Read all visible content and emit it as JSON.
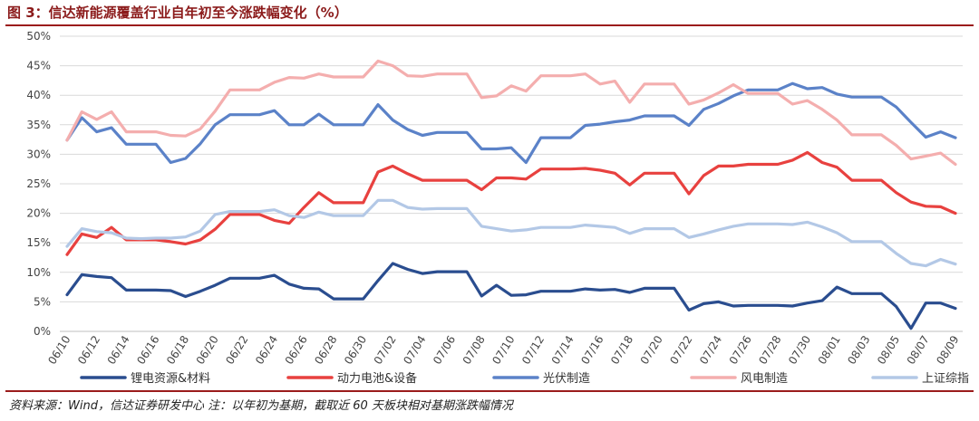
{
  "header": {
    "title": "图 3：信达新能源覆盖行业自年初至今涨跌幅变化（%）"
  },
  "footer": {
    "source": "资料来源：Wind，信达证券研发中心  注：以年初为基期，截取近 60 天板块相对基期涨跌幅情况"
  },
  "chart_data": {
    "type": "line",
    "title": "图 3：信达新能源覆盖行业自年初至今涨跌幅变化（%）",
    "xlabel": "",
    "ylabel": "",
    "ylim": [
      0,
      50
    ],
    "yticks": [
      "0%",
      "5%",
      "10%",
      "15%",
      "20%",
      "25%",
      "30%",
      "35%",
      "40%",
      "45%",
      "50%"
    ],
    "grid": true,
    "legend_position": "bottom",
    "xticks": [
      "06/10",
      "06/12",
      "06/14",
      "06/16",
      "06/18",
      "06/20",
      "06/22",
      "06/24",
      "06/26",
      "06/28",
      "06/30",
      "07/02",
      "07/04",
      "07/06",
      "07/08",
      "07/10",
      "07/12",
      "07/14",
      "07/16",
      "07/18",
      "07/20",
      "07/22",
      "07/24",
      "07/26",
      "07/28",
      "07/30",
      "08/01",
      "08/03",
      "08/05",
      "08/07",
      "08/09"
    ],
    "x": [
      "06/10",
      "06/11",
      "06/12",
      "06/13",
      "06/14",
      "06/15",
      "06/16",
      "06/17",
      "06/18",
      "06/19",
      "06/20",
      "06/21",
      "06/22",
      "06/23",
      "06/24",
      "06/25",
      "06/26",
      "06/27",
      "06/28",
      "06/29",
      "06/30",
      "07/01",
      "07/02",
      "07/03",
      "07/04",
      "07/05",
      "07/06",
      "07/07",
      "07/08",
      "07/09",
      "07/10",
      "07/11",
      "07/12",
      "07/13",
      "07/14",
      "07/15",
      "07/16",
      "07/17",
      "07/18",
      "07/19",
      "07/20",
      "07/21",
      "07/22",
      "07/23",
      "07/24",
      "07/25",
      "07/26",
      "07/27",
      "07/28",
      "07/29",
      "07/30",
      "07/31",
      "08/01",
      "08/02",
      "08/03",
      "08/04",
      "08/05",
      "08/06",
      "08/07",
      "08/08",
      "08/09"
    ],
    "series": [
      {
        "name": "锂电资源&材料",
        "color": "#2a4d8f",
        "values": [
          6.2,
          9.6,
          9.3,
          9.1,
          7.0,
          7.0,
          7.0,
          6.9,
          5.9,
          6.8,
          7.8,
          9.0,
          9.0,
          9.0,
          9.5,
          8.0,
          7.3,
          7.2,
          5.5,
          5.5,
          5.5,
          8.6,
          11.5,
          10.5,
          9.8,
          10.1,
          10.1,
          10.1,
          6.0,
          7.8,
          6.1,
          6.2,
          6.8,
          6.8,
          6.8,
          7.2,
          7.0,
          7.1,
          6.6,
          7.3,
          7.3,
          7.3,
          3.6,
          4.7,
          5.0,
          4.3,
          4.4,
          4.4,
          4.4,
          4.3,
          4.8,
          5.2,
          7.5,
          6.4,
          6.4,
          6.4,
          4.2,
          0.5,
          4.8,
          4.8,
          3.9
        ]
      },
      {
        "name": "动力电池&设备",
        "color": "#e8413f",
        "values": [
          13.0,
          16.5,
          15.9,
          17.6,
          15.5,
          15.5,
          15.5,
          15.2,
          14.8,
          15.5,
          17.3,
          19.8,
          19.8,
          19.8,
          18.8,
          18.3,
          21.0,
          23.5,
          21.8,
          21.8,
          21.8,
          27.0,
          28.0,
          26.7,
          25.6,
          25.6,
          25.6,
          25.6,
          24.0,
          26.0,
          26.0,
          25.8,
          27.5,
          27.5,
          27.5,
          27.6,
          27.3,
          26.8,
          24.8,
          26.8,
          26.8,
          26.8,
          23.3,
          26.4,
          28.0,
          28.0,
          28.3,
          28.3,
          28.3,
          29.0,
          30.3,
          28.6,
          27.8,
          25.6,
          25.6,
          25.6,
          23.5,
          21.9,
          21.2,
          21.1,
          20.0
        ]
      },
      {
        "name": "光伏制造",
        "color": "#5b82c8",
        "values": [
          32.4,
          36.2,
          33.8,
          34.5,
          31.7,
          31.7,
          31.7,
          28.6,
          29.3,
          31.8,
          35.0,
          36.7,
          36.7,
          36.7,
          37.4,
          35.0,
          35.0,
          36.8,
          35.0,
          35.0,
          35.0,
          38.4,
          35.8,
          34.2,
          33.2,
          33.7,
          33.7,
          33.7,
          30.9,
          30.9,
          31.1,
          28.6,
          32.8,
          32.8,
          32.8,
          34.9,
          35.1,
          35.5,
          35.8,
          36.5,
          36.5,
          36.5,
          34.9,
          37.6,
          38.6,
          39.9,
          40.9,
          40.9,
          40.9,
          42.0,
          41.1,
          41.3,
          40.2,
          39.7,
          39.7,
          39.7,
          38.0,
          35.4,
          32.9,
          33.8,
          32.8
        ]
      },
      {
        "name": "风电制造",
        "color": "#f4aeae",
        "values": [
          32.4,
          37.2,
          35.9,
          37.2,
          33.8,
          33.8,
          33.8,
          33.2,
          33.1,
          34.3,
          37.3,
          40.9,
          40.9,
          40.9,
          42.2,
          43.0,
          42.9,
          43.6,
          43.1,
          43.1,
          43.1,
          45.8,
          45.0,
          43.3,
          43.2,
          43.6,
          43.6,
          43.6,
          39.6,
          39.9,
          41.6,
          40.7,
          43.3,
          43.3,
          43.3,
          43.6,
          41.9,
          42.4,
          38.8,
          41.9,
          41.9,
          41.9,
          38.5,
          39.2,
          40.4,
          41.8,
          40.3,
          40.3,
          40.3,
          38.5,
          39.1,
          37.6,
          35.8,
          33.3,
          33.3,
          33.3,
          31.5,
          29.2,
          29.7,
          30.2,
          28.3
        ]
      },
      {
        "name": "上证综指",
        "color": "#b3c8e6",
        "values": [
          14.4,
          17.4,
          16.9,
          16.7,
          15.8,
          15.7,
          15.8,
          15.8,
          16.0,
          17.0,
          19.8,
          20.3,
          20.3,
          20.3,
          20.6,
          19.6,
          19.3,
          20.2,
          19.6,
          19.6,
          19.6,
          22.2,
          22.2,
          21.0,
          20.7,
          20.8,
          20.8,
          20.8,
          17.8,
          17.4,
          17.0,
          17.2,
          17.6,
          17.6,
          17.6,
          18.0,
          17.8,
          17.6,
          16.6,
          17.4,
          17.4,
          17.4,
          15.9,
          16.5,
          17.2,
          17.8,
          18.2,
          18.2,
          18.2,
          18.1,
          18.5,
          17.7,
          16.7,
          15.2,
          15.2,
          15.2,
          13.2,
          11.5,
          11.1,
          12.2,
          11.4
        ]
      }
    ]
  }
}
